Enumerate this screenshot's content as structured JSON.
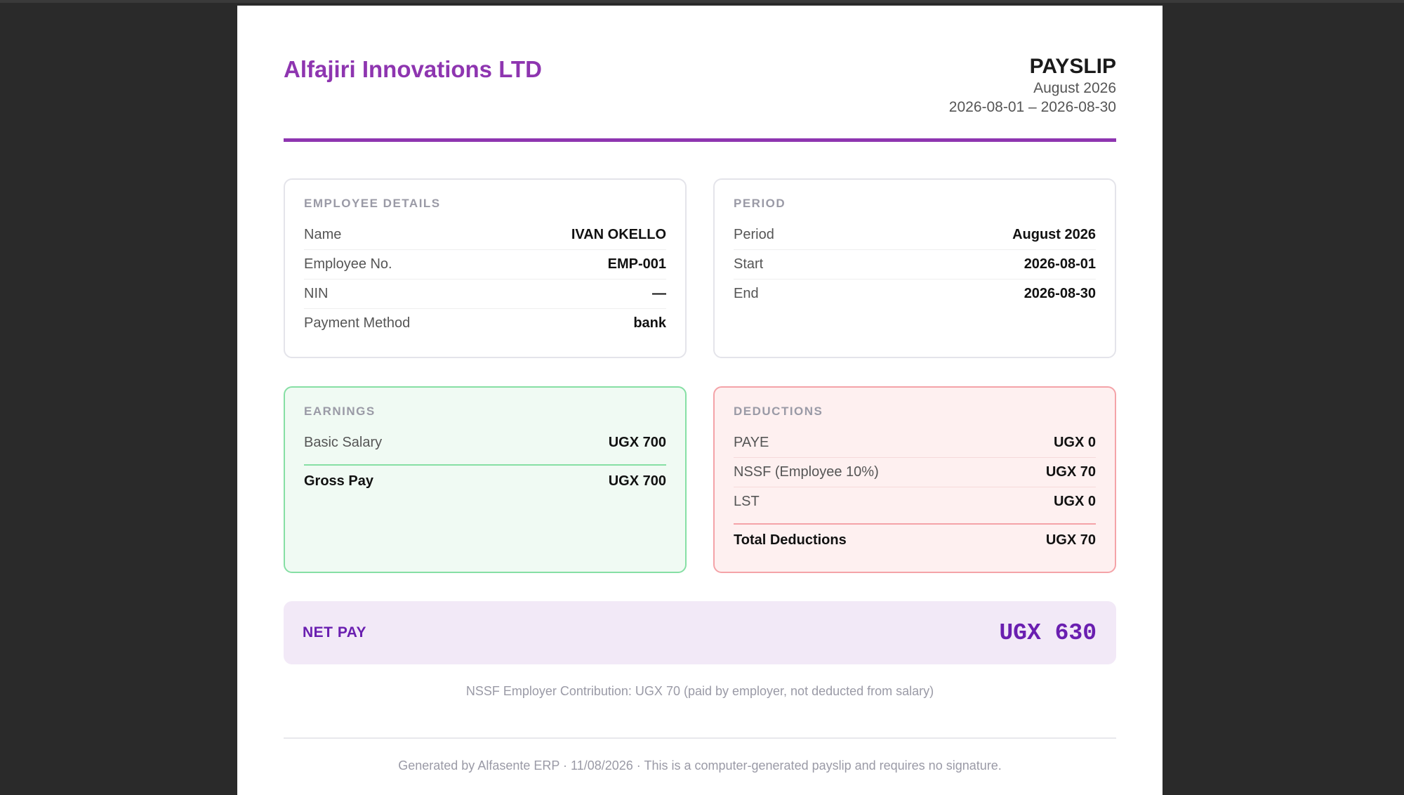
{
  "company": "Alfajiri Innovations LTD",
  "payslip": {
    "title": "PAYSLIP",
    "month": "August 2026",
    "range": "2026-08-01 – 2026-08-30"
  },
  "employee": {
    "heading": "EMPLOYEE DETAILS",
    "rows": [
      {
        "label": "Name",
        "value": "IVAN OKELLO"
      },
      {
        "label": "Employee No.",
        "value": "EMP-001"
      },
      {
        "label": "NIN",
        "value": "—"
      },
      {
        "label": "Payment Method",
        "value": "bank"
      }
    ]
  },
  "period": {
    "heading": "PERIOD",
    "rows": [
      {
        "label": "Period",
        "value": "August 2026"
      },
      {
        "label": "Start",
        "value": "2026-08-01"
      },
      {
        "label": "End",
        "value": "2026-08-30"
      }
    ]
  },
  "earnings": {
    "heading": "EARNINGS",
    "rows": [
      {
        "label": "Basic Salary",
        "value": "UGX 700"
      }
    ],
    "total_label": "Gross Pay",
    "total_value": "UGX 700"
  },
  "deductions": {
    "heading": "DEDUCTIONS",
    "rows": [
      {
        "label": "PAYE",
        "value": "UGX 0"
      },
      {
        "label": "NSSF (Employee 10%)",
        "value": "UGX 70"
      },
      {
        "label": "LST",
        "value": "UGX 0"
      }
    ],
    "total_label": "Total Deductions",
    "total_value": "UGX 70"
  },
  "net_pay": {
    "label": "NET PAY",
    "amount": "UGX 630"
  },
  "note": "NSSF Employer Contribution: UGX 70 (paid by employer, not deducted from salary)",
  "footer": "Generated by Alfasente ERP · 11/08/2026 · This is a computer-generated payslip and requires no signature.",
  "colors": {
    "brand": "#8e35b0",
    "net_pay": "#6a1fb0",
    "earnings_border": "#86dfa4",
    "deductions_border": "#f4a3a8"
  }
}
